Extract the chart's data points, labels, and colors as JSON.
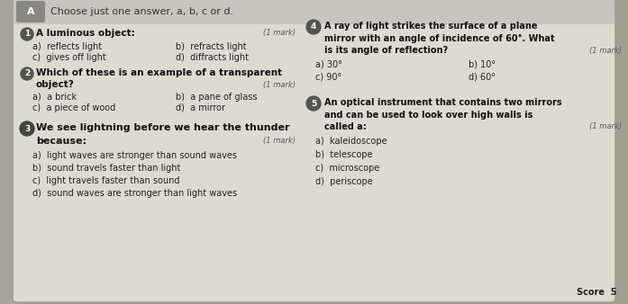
{
  "bg_outer": "#a0a090",
  "bg_card": "#dddad0",
  "header_bg": "#c8c5bc",
  "left_strip_color": "#a8a498",
  "q_circle_color": "#555550",
  "q4_circle_color": "#6a6a60",
  "q5_circle_color": "#6a6a60",
  "title": "Choose just one answer, a, b, c or d.",
  "q1_label": "A luminous object:",
  "q1_mark": "(1 mark)",
  "q1_a": "a)  reflects light",
  "q1_b": "b)  refracts light",
  "q1_c": "c)  gives off light",
  "q1_d": "d)  diffracts light",
  "q2_label_1": "Which of these is an example of a transparent",
  "q2_label_2": "object?",
  "q2_mark": "(1 mark)",
  "q2_a": "a)  a brick",
  "q2_b": "b)  a pane of glass",
  "q2_c": "c)  a piece of wood",
  "q2_d": "d)  a mirror",
  "q3_label_1": "We see lightning before we hear the thunder",
  "q3_label_2": "because:",
  "q3_mark": "(1 mark)",
  "q3_a": "a)  light waves are stronger than sound waves",
  "q3_b": "b)  sound travels faster than light",
  "q3_c": "c)  light travels faster than sound",
  "q3_d": "d)  sound waves are stronger than light waves",
  "q4_label_1": "A ray of light strikes the surface of a plane",
  "q4_label_2": "mirror with an angle of incidence of 60°. What",
  "q4_label_3": "is its angle of reflection?",
  "q4_mark": "(1 mark)",
  "q4_a": "a) 30°",
  "q4_b": "b) 10°",
  "q4_c": "c) 90°",
  "q4_d": "d) 60°",
  "q5_label_1": "An optical instrument that contains two mirrors",
  "q5_label_2": "and can be used to look over high walls is",
  "q5_label_3": "called a:",
  "q5_mark": "(1 mark)",
  "q5_a": "a)  kaleidoscope",
  "q5_b": "b)  telescope",
  "q5_c": "c)  microscope",
  "q5_d": "d)  periscope",
  "score_label": "Score  5"
}
